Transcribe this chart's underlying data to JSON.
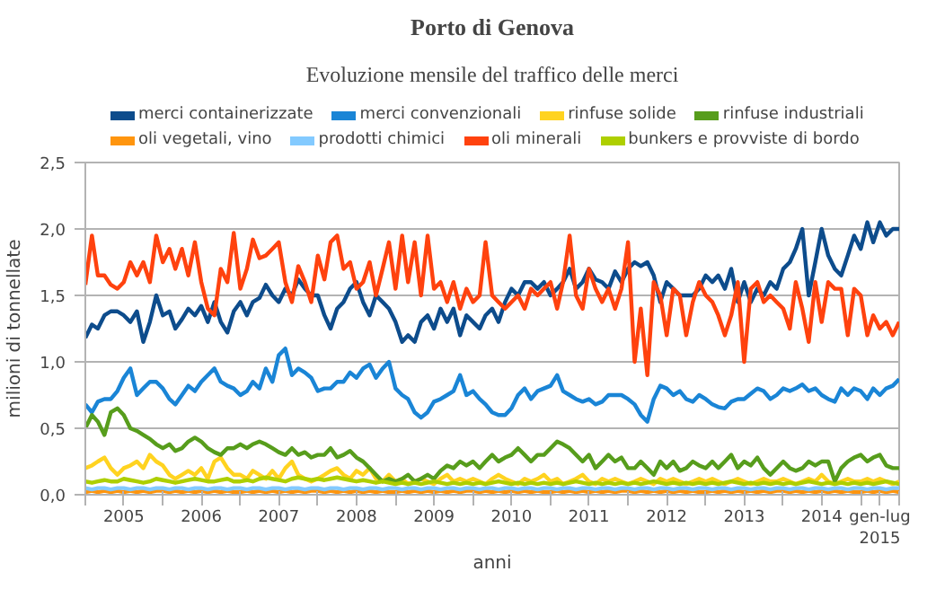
{
  "chart_data": {
    "type": "line",
    "title": "Porto di Genova",
    "subtitle": "Evoluzione mensile del traffico delle merci",
    "xlabel": "anni",
    "ylabel": "milioni di tonnellate",
    "xlim": [
      "2005-01",
      "2015-07"
    ],
    "ylim": [
      0,
      2.5
    ],
    "yticks": [
      {
        "value": 0,
        "label": "0,0"
      },
      {
        "value": 0.5,
        "label": "0,5"
      },
      {
        "value": 1,
        "label": "1,0"
      },
      {
        "value": 1.5,
        "label": "1,5"
      },
      {
        "value": 2,
        "label": "2,0"
      },
      {
        "value": 2.5,
        "label": "2,5"
      }
    ],
    "xticks": [
      {
        "value": "2005-01",
        "label": null
      },
      {
        "value": "2005-07",
        "label": "2005"
      },
      {
        "value": "2006-01",
        "label": null
      },
      {
        "value": "2006-07",
        "label": "2006"
      },
      {
        "value": "2007-01",
        "label": null
      },
      {
        "value": "2007-07",
        "label": "2007"
      },
      {
        "value": "2008-01",
        "label": null
      },
      {
        "value": "2008-07",
        "label": "2008"
      },
      {
        "value": "2009-01",
        "label": null
      },
      {
        "value": "2009-07",
        "label": "2009"
      },
      {
        "value": "2010-01",
        "label": null
      },
      {
        "value": "2010-07",
        "label": "2010"
      },
      {
        "value": "2011-01",
        "label": null
      },
      {
        "value": "2011-07",
        "label": "2011"
      },
      {
        "value": "2012-01",
        "label": null
      },
      {
        "value": "2012-07",
        "label": "2012"
      },
      {
        "value": "2013-01",
        "label": null
      },
      {
        "value": "2013-07",
        "label": "2013"
      },
      {
        "value": "2014-01",
        "label": null
      },
      {
        "value": "2014-07",
        "label": "2014"
      },
      {
        "value": "2015-01",
        "label": null
      },
      {
        "value": "2015-04",
        "label": "gen-lug 2015"
      },
      {
        "value": "2015-07",
        "label": null
      }
    ],
    "grid": "y",
    "legend": "top",
    "marker": "none",
    "line_style": "solid",
    "x": [
      "2005-01",
      "2005-02",
      "2005-03",
      "2005-04",
      "2005-05",
      "2005-06",
      "2005-07",
      "2005-08",
      "2005-09",
      "2005-10",
      "2005-11",
      "2005-12",
      "2006-01",
      "2006-02",
      "2006-03",
      "2006-04",
      "2006-05",
      "2006-06",
      "2006-07",
      "2006-08",
      "2006-09",
      "2006-10",
      "2006-11",
      "2006-12",
      "2007-01",
      "2007-02",
      "2007-03",
      "2007-04",
      "2007-05",
      "2007-06",
      "2007-07",
      "2007-08",
      "2007-09",
      "2007-10",
      "2007-11",
      "2007-12",
      "2008-01",
      "2008-02",
      "2008-03",
      "2008-04",
      "2008-05",
      "2008-06",
      "2008-07",
      "2008-08",
      "2008-09",
      "2008-10",
      "2008-11",
      "2008-12",
      "2009-01",
      "2009-02",
      "2009-03",
      "2009-04",
      "2009-05",
      "2009-06",
      "2009-07",
      "2009-08",
      "2009-09",
      "2009-10",
      "2009-11",
      "2009-12",
      "2010-01",
      "2010-02",
      "2010-03",
      "2010-04",
      "2010-05",
      "2010-06",
      "2010-07",
      "2010-08",
      "2010-09",
      "2010-10",
      "2010-11",
      "2010-12",
      "2011-01",
      "2011-02",
      "2011-03",
      "2011-04",
      "2011-05",
      "2011-06",
      "2011-07",
      "2011-08",
      "2011-09",
      "2011-10",
      "2011-11",
      "2011-12",
      "2012-01",
      "2012-02",
      "2012-03",
      "2012-04",
      "2012-05",
      "2012-06",
      "2012-07",
      "2012-08",
      "2012-09",
      "2012-10",
      "2012-11",
      "2012-12",
      "2013-01",
      "2013-02",
      "2013-03",
      "2013-04",
      "2013-05",
      "2013-06",
      "2013-07",
      "2013-08",
      "2013-09",
      "2013-10",
      "2013-11",
      "2013-12",
      "2014-01",
      "2014-02",
      "2014-03",
      "2014-04",
      "2014-05",
      "2014-06",
      "2014-07",
      "2014-08",
      "2014-09",
      "2014-10",
      "2014-11",
      "2014-12",
      "2015-01",
      "2015-02",
      "2015-03",
      "2015-04",
      "2015-05",
      "2015-06",
      "2015-07"
    ],
    "series": [
      {
        "name": "merci containerizzate",
        "color": "#0d4c8c",
        "values": [
          1.18,
          1.28,
          1.25,
          1.35,
          1.38,
          1.38,
          1.35,
          1.3,
          1.38,
          1.15,
          1.3,
          1.5,
          1.35,
          1.38,
          1.25,
          1.32,
          1.4,
          1.35,
          1.42,
          1.3,
          1.45,
          1.3,
          1.22,
          1.38,
          1.45,
          1.35,
          1.45,
          1.48,
          1.58,
          1.5,
          1.45,
          1.55,
          1.5,
          1.62,
          1.55,
          1.5,
          1.5,
          1.35,
          1.25,
          1.4,
          1.45,
          1.55,
          1.6,
          1.45,
          1.35,
          1.5,
          1.45,
          1.4,
          1.3,
          1.15,
          1.2,
          1.15,
          1.3,
          1.35,
          1.25,
          1.4,
          1.3,
          1.4,
          1.2,
          1.35,
          1.3,
          1.25,
          1.35,
          1.4,
          1.3,
          1.45,
          1.55,
          1.5,
          1.6,
          1.6,
          1.55,
          1.6,
          1.5,
          1.55,
          1.6,
          1.7,
          1.55,
          1.6,
          1.7,
          1.62,
          1.6,
          1.55,
          1.68,
          1.6,
          1.7,
          1.75,
          1.72,
          1.75,
          1.65,
          1.45,
          1.6,
          1.55,
          1.5,
          1.5,
          1.5,
          1.55,
          1.65,
          1.6,
          1.65,
          1.55,
          1.7,
          1.45,
          1.6,
          1.45,
          1.55,
          1.5,
          1.6,
          1.55,
          1.7,
          1.75,
          1.85,
          2.0,
          1.5,
          1.75,
          2.0,
          1.8,
          1.7,
          1.65,
          1.8,
          1.95,
          1.85,
          2.05,
          1.9,
          2.05,
          1.95,
          2.0,
          2.0
        ]
      },
      {
        "name": "merci convenzionali",
        "color": "#1a85d6",
        "values": [
          0.68,
          0.62,
          0.7,
          0.72,
          0.72,
          0.78,
          0.88,
          0.95,
          0.75,
          0.8,
          0.85,
          0.85,
          0.8,
          0.72,
          0.68,
          0.75,
          0.82,
          0.78,
          0.85,
          0.9,
          0.95,
          0.85,
          0.82,
          0.8,
          0.75,
          0.78,
          0.85,
          0.8,
          0.95,
          0.85,
          1.05,
          1.1,
          0.9,
          0.95,
          0.92,
          0.88,
          0.78,
          0.8,
          0.8,
          0.85,
          0.85,
          0.92,
          0.88,
          0.95,
          0.98,
          0.88,
          0.95,
          1.0,
          0.8,
          0.75,
          0.72,
          0.62,
          0.58,
          0.62,
          0.7,
          0.72,
          0.75,
          0.78,
          0.9,
          0.75,
          0.78,
          0.72,
          0.68,
          0.62,
          0.6,
          0.6,
          0.65,
          0.75,
          0.8,
          0.72,
          0.78,
          0.8,
          0.82,
          0.9,
          0.78,
          0.75,
          0.72,
          0.7,
          0.72,
          0.68,
          0.7,
          0.75,
          0.75,
          0.75,
          0.72,
          0.68,
          0.6,
          0.55,
          0.72,
          0.82,
          0.8,
          0.75,
          0.78,
          0.72,
          0.7,
          0.75,
          0.72,
          0.68,
          0.66,
          0.65,
          0.7,
          0.72,
          0.72,
          0.76,
          0.8,
          0.78,
          0.72,
          0.75,
          0.8,
          0.78,
          0.8,
          0.83,
          0.78,
          0.8,
          0.75,
          0.72,
          0.7,
          0.8,
          0.75,
          0.8,
          0.78,
          0.72,
          0.8,
          0.75,
          0.8,
          0.82,
          0.87
        ]
      },
      {
        "name": "rinfuse solide",
        "color": "#ffd320",
        "values": [
          0.2,
          0.22,
          0.25,
          0.28,
          0.2,
          0.15,
          0.2,
          0.22,
          0.25,
          0.2,
          0.3,
          0.25,
          0.22,
          0.15,
          0.12,
          0.15,
          0.18,
          0.15,
          0.2,
          0.12,
          0.25,
          0.28,
          0.2,
          0.15,
          0.15,
          0.12,
          0.18,
          0.15,
          0.12,
          0.18,
          0.12,
          0.2,
          0.25,
          0.15,
          0.12,
          0.1,
          0.12,
          0.15,
          0.18,
          0.2,
          0.15,
          0.12,
          0.18,
          0.15,
          0.2,
          0.12,
          0.1,
          0.15,
          0.1,
          0.12,
          0.08,
          0.1,
          0.12,
          0.1,
          0.08,
          0.12,
          0.15,
          0.1,
          0.12,
          0.1,
          0.12,
          0.1,
          0.08,
          0.12,
          0.15,
          0.12,
          0.1,
          0.08,
          0.12,
          0.1,
          0.12,
          0.15,
          0.1,
          0.12,
          0.08,
          0.1,
          0.12,
          0.15,
          0.1,
          0.08,
          0.12,
          0.1,
          0.12,
          0.1,
          0.08,
          0.1,
          0.12,
          0.1,
          0.08,
          0.12,
          0.1,
          0.12,
          0.1,
          0.08,
          0.1,
          0.12,
          0.1,
          0.12,
          0.1,
          0.08,
          0.1,
          0.12,
          0.1,
          0.08,
          0.1,
          0.12,
          0.1,
          0.1,
          0.12,
          0.1,
          0.08,
          0.1,
          0.12,
          0.1,
          0.15,
          0.1,
          0.08,
          0.1,
          0.12,
          0.1,
          0.1,
          0.12,
          0.1,
          0.12,
          0.1,
          0.08,
          0.1
        ]
      },
      {
        "name": "rinfuse industriali",
        "color": "#579d1c",
        "values": [
          0.5,
          0.6,
          0.55,
          0.45,
          0.62,
          0.65,
          0.6,
          0.5,
          0.48,
          0.45,
          0.42,
          0.38,
          0.35,
          0.38,
          0.33,
          0.35,
          0.4,
          0.43,
          0.4,
          0.35,
          0.32,
          0.3,
          0.35,
          0.35,
          0.38,
          0.35,
          0.38,
          0.4,
          0.38,
          0.35,
          0.32,
          0.3,
          0.35,
          0.3,
          0.32,
          0.28,
          0.3,
          0.3,
          0.35,
          0.28,
          0.3,
          0.33,
          0.28,
          0.25,
          0.2,
          0.15,
          0.1,
          0.12,
          0.1,
          0.12,
          0.15,
          0.1,
          0.12,
          0.15,
          0.12,
          0.18,
          0.22,
          0.2,
          0.25,
          0.22,
          0.25,
          0.2,
          0.25,
          0.3,
          0.25,
          0.28,
          0.3,
          0.35,
          0.3,
          0.25,
          0.3,
          0.3,
          0.35,
          0.4,
          0.38,
          0.35,
          0.3,
          0.25,
          0.3,
          0.2,
          0.25,
          0.3,
          0.25,
          0.28,
          0.2,
          0.2,
          0.25,
          0.2,
          0.15,
          0.25,
          0.2,
          0.25,
          0.18,
          0.2,
          0.25,
          0.22,
          0.2,
          0.25,
          0.2,
          0.25,
          0.3,
          0.2,
          0.25,
          0.22,
          0.28,
          0.2,
          0.15,
          0.2,
          0.25,
          0.2,
          0.18,
          0.2,
          0.25,
          0.22,
          0.25,
          0.25,
          0.1,
          0.2,
          0.25,
          0.28,
          0.3,
          0.25,
          0.28,
          0.3,
          0.22,
          0.2,
          0.2
        ]
      },
      {
        "name": "oli vegetali, vino",
        "color": "#ff950e",
        "values": [
          0.02,
          0.03,
          0.02,
          0.03,
          0.02,
          0.03,
          0.02,
          0.03,
          0.02,
          0.03,
          0.02,
          0.03,
          0.03,
          0.02,
          0.03,
          0.02,
          0.03,
          0.02,
          0.03,
          0.02,
          0.03,
          0.02,
          0.03,
          0.02,
          0.02,
          0.03,
          0.02,
          0.03,
          0.02,
          0.03,
          0.02,
          0.03,
          0.02,
          0.03,
          0.02,
          0.03,
          0.03,
          0.02,
          0.03,
          0.02,
          0.03,
          0.02,
          0.03,
          0.02,
          0.03,
          0.02,
          0.03,
          0.02,
          0.02,
          0.03,
          0.02,
          0.03,
          0.02,
          0.03,
          0.02,
          0.03,
          0.02,
          0.03,
          0.02,
          0.03,
          0.03,
          0.02,
          0.03,
          0.02,
          0.03,
          0.02,
          0.03,
          0.02,
          0.03,
          0.02,
          0.03,
          0.02,
          0.02,
          0.03,
          0.02,
          0.03,
          0.02,
          0.03,
          0.02,
          0.03,
          0.02,
          0.03,
          0.02,
          0.03,
          0.03,
          0.02,
          0.03,
          0.02,
          0.03,
          0.02,
          0.03,
          0.02,
          0.03,
          0.02,
          0.03,
          0.02,
          0.02,
          0.03,
          0.02,
          0.03,
          0.02,
          0.03,
          0.02,
          0.03,
          0.02,
          0.03,
          0.02,
          0.03,
          0.03,
          0.02,
          0.03,
          0.02,
          0.03,
          0.02,
          0.03,
          0.02,
          0.03,
          0.02,
          0.03,
          0.02,
          0.02,
          0.03,
          0.02,
          0.03,
          0.02,
          0.03,
          0.02
        ]
      },
      {
        "name": "prodotti chimici",
        "color": "#83caff",
        "values": [
          0.05,
          0.04,
          0.05,
          0.05,
          0.04,
          0.05,
          0.05,
          0.04,
          0.05,
          0.05,
          0.04,
          0.05,
          0.05,
          0.04,
          0.05,
          0.05,
          0.04,
          0.05,
          0.05,
          0.04,
          0.05,
          0.05,
          0.04,
          0.05,
          0.05,
          0.04,
          0.05,
          0.05,
          0.04,
          0.05,
          0.05,
          0.04,
          0.05,
          0.05,
          0.04,
          0.05,
          0.05,
          0.04,
          0.05,
          0.05,
          0.04,
          0.05,
          0.05,
          0.04,
          0.05,
          0.05,
          0.04,
          0.05,
          0.05,
          0.04,
          0.05,
          0.05,
          0.04,
          0.05,
          0.05,
          0.04,
          0.05,
          0.05,
          0.04,
          0.05,
          0.05,
          0.04,
          0.05,
          0.05,
          0.04,
          0.05,
          0.05,
          0.04,
          0.05,
          0.05,
          0.04,
          0.05,
          0.05,
          0.04,
          0.05,
          0.05,
          0.04,
          0.05,
          0.05,
          0.04,
          0.05,
          0.05,
          0.04,
          0.05,
          0.05,
          0.04,
          0.05,
          0.05,
          0.04,
          0.05,
          0.05,
          0.04,
          0.05,
          0.05,
          0.04,
          0.05,
          0.05,
          0.04,
          0.05,
          0.05,
          0.04,
          0.05,
          0.05,
          0.04,
          0.05,
          0.05,
          0.04,
          0.05,
          0.05,
          0.04,
          0.05,
          0.05,
          0.04,
          0.05,
          0.05,
          0.04,
          0.05,
          0.05,
          0.04,
          0.05,
          0.05,
          0.04,
          0.05,
          0.05,
          0.04,
          0.05,
          0.05
        ]
      },
      {
        "name": "oli minerali",
        "color": "#ff420e",
        "values": [
          1.58,
          1.95,
          1.65,
          1.65,
          1.58,
          1.55,
          1.6,
          1.75,
          1.65,
          1.75,
          1.6,
          1.95,
          1.75,
          1.85,
          1.7,
          1.85,
          1.65,
          1.9,
          1.6,
          1.4,
          1.35,
          1.7,
          1.6,
          1.97,
          1.55,
          1.7,
          1.92,
          1.78,
          1.8,
          1.85,
          1.9,
          1.6,
          1.45,
          1.72,
          1.6,
          1.45,
          1.8,
          1.62,
          1.9,
          1.95,
          1.7,
          1.75,
          1.55,
          1.6,
          1.75,
          1.5,
          1.7,
          1.9,
          1.55,
          1.95,
          1.6,
          1.9,
          1.5,
          1.95,
          1.55,
          1.6,
          1.45,
          1.6,
          1.4,
          1.55,
          1.45,
          1.5,
          1.9,
          1.5,
          1.45,
          1.4,
          1.45,
          1.5,
          1.4,
          1.55,
          1.5,
          1.55,
          1.6,
          1.4,
          1.6,
          1.95,
          1.5,
          1.4,
          1.7,
          1.55,
          1.45,
          1.55,
          1.4,
          1.55,
          1.9,
          1.0,
          1.4,
          0.9,
          1.6,
          1.5,
          1.2,
          1.55,
          1.5,
          1.2,
          1.45,
          1.6,
          1.5,
          1.45,
          1.35,
          1.2,
          1.35,
          1.6,
          1.0,
          1.55,
          1.6,
          1.45,
          1.5,
          1.45,
          1.4,
          1.25,
          1.6,
          1.4,
          1.15,
          1.6,
          1.3,
          1.6,
          1.55,
          1.55,
          1.2,
          1.55,
          1.5,
          1.2,
          1.35,
          1.25,
          1.3,
          1.2,
          1.3
        ]
      },
      {
        "name": "bunkers e provviste di bordo",
        "color": "#aecf00",
        "values": [
          0.1,
          0.09,
          0.1,
          0.11,
          0.1,
          0.1,
          0.12,
          0.11,
          0.1,
          0.09,
          0.1,
          0.12,
          0.11,
          0.1,
          0.09,
          0.1,
          0.11,
          0.12,
          0.11,
          0.1,
          0.1,
          0.11,
          0.12,
          0.1,
          0.1,
          0.11,
          0.1,
          0.12,
          0.13,
          0.12,
          0.11,
          0.1,
          0.12,
          0.13,
          0.12,
          0.11,
          0.12,
          0.11,
          0.12,
          0.13,
          0.12,
          0.11,
          0.1,
          0.11,
          0.1,
          0.09,
          0.1,
          0.09,
          0.08,
          0.09,
          0.08,
          0.09,
          0.08,
          0.09,
          0.1,
          0.09,
          0.08,
          0.09,
          0.08,
          0.09,
          0.08,
          0.09,
          0.08,
          0.09,
          0.1,
          0.09,
          0.08,
          0.09,
          0.08,
          0.09,
          0.08,
          0.09,
          0.08,
          0.09,
          0.08,
          0.09,
          0.1,
          0.09,
          0.08,
          0.09,
          0.08,
          0.09,
          0.08,
          0.09,
          0.08,
          0.09,
          0.08,
          0.09,
          0.1,
          0.09,
          0.08,
          0.09,
          0.08,
          0.09,
          0.08,
          0.09,
          0.08,
          0.09,
          0.08,
          0.09,
          0.1,
          0.09,
          0.08,
          0.09,
          0.08,
          0.09,
          0.08,
          0.09,
          0.08,
          0.09,
          0.08,
          0.09,
          0.1,
          0.09,
          0.08,
          0.09,
          0.08,
          0.09,
          0.08,
          0.09,
          0.08,
          0.09,
          0.08,
          0.09,
          0.1,
          0.09,
          0.08
        ]
      }
    ]
  }
}
